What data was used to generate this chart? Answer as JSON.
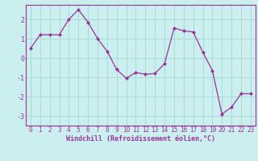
{
  "x": [
    0,
    1,
    2,
    3,
    4,
    5,
    6,
    7,
    8,
    9,
    10,
    11,
    12,
    13,
    14,
    15,
    16,
    17,
    18,
    19,
    20,
    21,
    22,
    23
  ],
  "y": [
    0.5,
    1.2,
    1.2,
    1.2,
    2.0,
    2.5,
    1.85,
    1.0,
    0.35,
    -0.6,
    -1.05,
    -0.75,
    -0.85,
    -0.8,
    -0.3,
    1.55,
    1.4,
    1.35,
    0.3,
    -0.65,
    -2.9,
    -2.55,
    -1.85,
    -1.85
  ],
  "line_color": "#993399",
  "marker": "D",
  "marker_size": 2.0,
  "bg_color": "#cbefef",
  "grid_color": "#aad8d8",
  "xlabel": "Windchill (Refroidissement éolien,°C)",
  "xlabel_color": "#993399",
  "tick_color": "#993399",
  "spine_color": "#993399",
  "xlim": [
    -0.5,
    23.5
  ],
  "ylim": [
    -3.5,
    2.75
  ],
  "yticks": [
    -3,
    -2,
    -1,
    0,
    1,
    2
  ],
  "xticks": [
    0,
    1,
    2,
    3,
    4,
    5,
    6,
    7,
    8,
    9,
    10,
    11,
    12,
    13,
    14,
    15,
    16,
    17,
    18,
    19,
    20,
    21,
    22,
    23
  ],
  "tick_fontsize": 5.5,
  "xlabel_fontsize": 6.0,
  "linewidth": 0.9
}
